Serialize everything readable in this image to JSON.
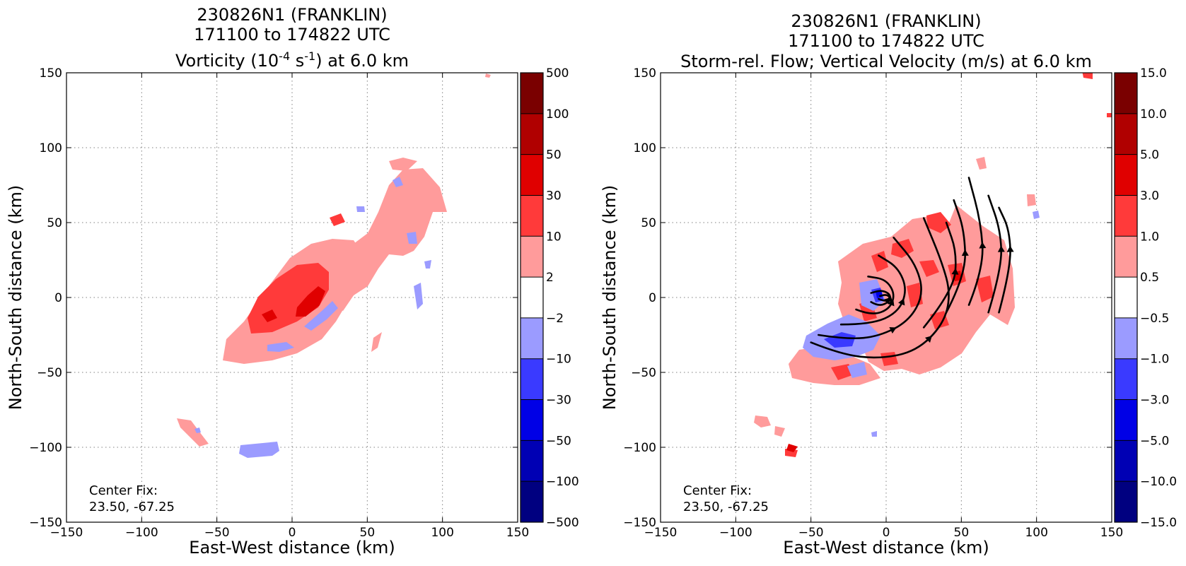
{
  "chart_data": [
    {
      "type": "heatmap",
      "title_lines": [
        "230826N1 (FRANKLIN)",
        "171100 to 174822 UTC"
      ],
      "title_line3_main": "Vorticity (10",
      "title_line3_sup1": "-4",
      "title_line3_mid": " s",
      "title_line3_sup2": "-1",
      "title_line3_end": ") at 6.0 km",
      "xlabel": "East-West distance (km)",
      "ylabel": "North-South distance (km)",
      "xlim": [
        -150,
        150
      ],
      "ylim": [
        -150,
        150
      ],
      "xticks": [
        -150,
        -100,
        -50,
        0,
        50,
        100,
        150
      ],
      "yticks": [
        -150,
        -100,
        -50,
        0,
        50,
        100,
        150
      ],
      "xtick_labels": [
        "−150",
        "−100",
        "−50",
        "0",
        "50",
        "100",
        "150"
      ],
      "ytick_labels": [
        "−150",
        "−100",
        "−50",
        "0",
        "50",
        "100",
        "150"
      ],
      "grid": true,
      "annotation_lines": [
        "Center Fix:",
        "23.50, -67.25"
      ],
      "colorbar": {
        "levels_labels": [
          "500",
          "100",
          "50",
          "30",
          "10",
          "2",
          "−2",
          "−10",
          "−30",
          "−50",
          "−100",
          "−500"
        ],
        "colors": [
          "#7a0000",
          "#b00000",
          "#e00000",
          "#ff3a3a",
          "#ff9b9b",
          "#ffffff",
          "#9b9bff",
          "#3a3aff",
          "#0000e6",
          "#0000b4",
          "#000080"
        ]
      }
    },
    {
      "type": "heatmap",
      "title_lines": [
        "230826N1 (FRANKLIN)",
        "171100 to 174822 UTC",
        "Storm-rel. Flow; Vertical Velocity (m/s) at 6.0 km"
      ],
      "xlabel": "East-West distance (km)",
      "ylabel": "North-South distance (km)",
      "xlim": [
        -150,
        150
      ],
      "ylim": [
        -150,
        150
      ],
      "xticks": [
        -150,
        -100,
        -50,
        0,
        50,
        100,
        150
      ],
      "yticks": [
        -150,
        -100,
        -50,
        0,
        50,
        100,
        150
      ],
      "xtick_labels": [
        "−150",
        "−100",
        "−50",
        "0",
        "50",
        "100",
        "150"
      ],
      "ytick_labels": [
        "−150",
        "−100",
        "−50",
        "0",
        "50",
        "100",
        "150"
      ],
      "grid": true,
      "annotation_lines": [
        "Center Fix:",
        "23.50, -67.25"
      ],
      "colorbar": {
        "levels_labels": [
          "15.0",
          "10.0",
          "5.0",
          "3.0",
          "1.0",
          "0.5",
          "−0.5",
          "−1.0",
          "−3.0",
          "−5.0",
          "−10.0",
          "−15.0"
        ],
        "colors": [
          "#7a0000",
          "#b00000",
          "#e00000",
          "#ff3a3a",
          "#ff9b9b",
          "#ffffff",
          "#9b9bff",
          "#3a3aff",
          "#0000e6",
          "#0000b4",
          "#000080"
        ]
      },
      "streamlines_xy_km": [
        [
          [
            -50,
            -30
          ],
          [
            -30,
            -38
          ],
          [
            -5,
            -41
          ],
          [
            20,
            -36
          ],
          [
            38,
            -18
          ],
          [
            43,
            2
          ],
          [
            37,
            24
          ],
          [
            25,
            53
          ]
        ],
        [
          [
            -45,
            -25
          ],
          [
            -25,
            -28
          ],
          [
            -5,
            -26
          ],
          [
            15,
            -16
          ],
          [
            25,
            2
          ],
          [
            20,
            22
          ],
          [
            5,
            40
          ]
        ],
        [
          [
            -30,
            -18
          ],
          [
            -10,
            -18
          ],
          [
            8,
            -10
          ],
          [
            14,
            5
          ],
          [
            8,
            20
          ],
          [
            -5,
            28
          ]
        ],
        [
          [
            -20,
            -8
          ],
          [
            -10,
            -12
          ],
          [
            2,
            -8
          ],
          [
            6,
            2
          ],
          [
            0,
            12
          ],
          [
            -12,
            14
          ]
        ],
        [
          [
            -10,
            -3
          ],
          [
            -5,
            -6
          ],
          [
            2,
            -3
          ],
          [
            3,
            2
          ],
          [
            -3,
            5
          ],
          [
            -10,
            3
          ]
        ],
        [
          [
            -5,
            -1
          ],
          [
            0,
            -3
          ],
          [
            3,
            0
          ],
          [
            0,
            2
          ],
          [
            -4,
            1
          ]
        ],
        [
          [
            25,
            -20
          ],
          [
            45,
            5
          ],
          [
            47,
            30
          ],
          [
            40,
            50
          ]
        ],
        [
          [
            40,
            -10
          ],
          [
            53,
            15
          ],
          [
            52,
            45
          ],
          [
            45,
            65
          ]
        ],
        [
          [
            55,
            -5
          ],
          [
            65,
            20
          ],
          [
            63,
            50
          ],
          [
            55,
            80
          ]
        ],
        [
          [
            68,
            -10
          ],
          [
            77,
            20
          ],
          [
            76,
            45
          ],
          [
            68,
            68
          ]
        ],
        [
          [
            75,
            -10
          ],
          [
            83,
            20
          ],
          [
            82,
            45
          ],
          [
            75,
            60
          ]
        ]
      ]
    }
  ]
}
